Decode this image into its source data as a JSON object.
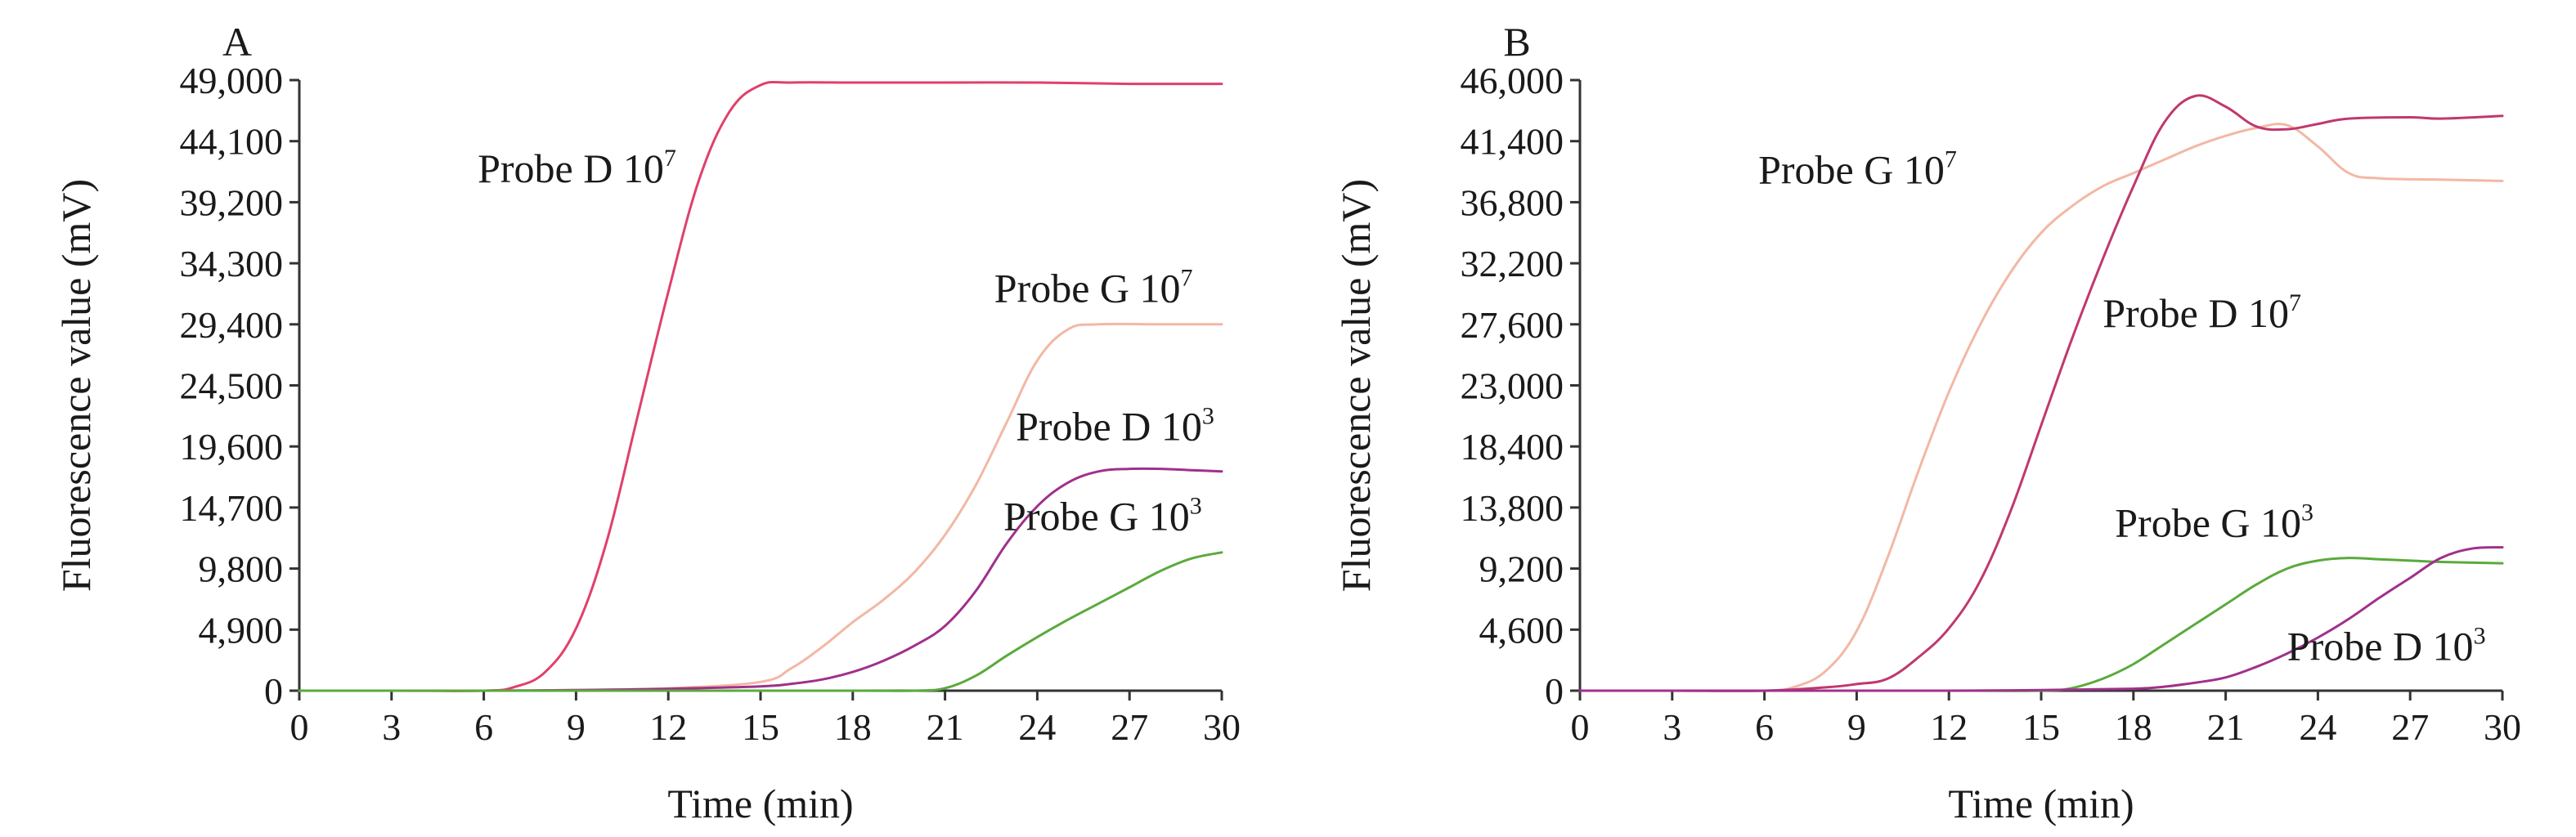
{
  "chart_data": [
    {
      "type": "line",
      "panel_label": "A",
      "xlabel": "Time (min)",
      "ylabel": "Fluorescence value (mV)",
      "xlim": [
        0,
        30
      ],
      "ylim": [
        0,
        49000
      ],
      "x_ticks": [
        0,
        3,
        6,
        9,
        12,
        15,
        18,
        21,
        24,
        27,
        30
      ],
      "x_tick_labels": [
        "0",
        "3",
        "6",
        "9",
        "12",
        "15",
        "18",
        "21",
        "24",
        "27",
        "30"
      ],
      "y_ticks": [
        0,
        4900,
        9800,
        14700,
        19600,
        24500,
        29400,
        34300,
        39200,
        44100,
        49000
      ],
      "y_tick_labels": [
        "0",
        "4,900",
        "9,800",
        "14,700",
        "19,600",
        "24,500",
        "29,400",
        "34,300",
        "39,200",
        "44,100",
        "49,000"
      ],
      "grid": false,
      "series": [
        {
          "name": "Probe D 10^7",
          "label_base": "Probe D 10",
          "label_exp": "7",
          "color": "#e0406a",
          "points": [
            [
              0,
              0
            ],
            [
              3,
              0
            ],
            [
              6,
              0
            ],
            [
              7,
              300
            ],
            [
              8,
              1500
            ],
            [
              9,
              5000
            ],
            [
              10,
              12000
            ],
            [
              11,
              22000
            ],
            [
              12,
              32000
            ],
            [
              13,
              41000
            ],
            [
              14,
              46500
            ],
            [
              15,
              48600
            ],
            [
              16,
              48800
            ],
            [
              18,
              48800
            ],
            [
              21,
              48800
            ],
            [
              24,
              48800
            ],
            [
              27,
              48700
            ],
            [
              30,
              48700
            ]
          ]
        },
        {
          "name": "Probe G 10^7",
          "label_base": "Probe G 10",
          "label_exp": "7",
          "color": "#f2b8a4",
          "points": [
            [
              0,
              0
            ],
            [
              3,
              0
            ],
            [
              6,
              0
            ],
            [
              9,
              50
            ],
            [
              12,
              200
            ],
            [
              15,
              700
            ],
            [
              16,
              1800
            ],
            [
              17,
              3500
            ],
            [
              18,
              5500
            ],
            [
              19,
              7300
            ],
            [
              20,
              9500
            ],
            [
              21,
              12500
            ],
            [
              22,
              16500
            ],
            [
              23,
              21500
            ],
            [
              24,
              26500
            ],
            [
              25,
              29000
            ],
            [
              26,
              29400
            ],
            [
              28,
              29400
            ],
            [
              30,
              29400
            ]
          ]
        },
        {
          "name": "Probe D 10^3",
          "label_base": "Probe D 10",
          "label_exp": "3",
          "color": "#a0308c",
          "points": [
            [
              0,
              0
            ],
            [
              3,
              0
            ],
            [
              6,
              0
            ],
            [
              9,
              50
            ],
            [
              12,
              150
            ],
            [
              15,
              350
            ],
            [
              16,
              550
            ],
            [
              17,
              900
            ],
            [
              18,
              1500
            ],
            [
              19,
              2400
            ],
            [
              20,
              3600
            ],
            [
              21,
              5200
            ],
            [
              22,
              8000
            ],
            [
              23,
              11800
            ],
            [
              24,
              14800
            ],
            [
              25,
              16700
            ],
            [
              26,
              17600
            ],
            [
              27,
              17800
            ],
            [
              28,
              17800
            ],
            [
              29,
              17700
            ],
            [
              30,
              17600
            ]
          ]
        },
        {
          "name": "Probe G 10^3",
          "label_base": "Probe G 10",
          "label_exp": "3",
          "color": "#5aaa3c",
          "points": [
            [
              0,
              0
            ],
            [
              6,
              0
            ],
            [
              12,
              0
            ],
            [
              18,
              0
            ],
            [
              20,
              0
            ],
            [
              21,
              200
            ],
            [
              22,
              1200
            ],
            [
              23,
              2800
            ],
            [
              24,
              4300
            ],
            [
              25,
              5700
            ],
            [
              26,
              7000
            ],
            [
              27,
              8300
            ],
            [
              28,
              9600
            ],
            [
              29,
              10600
            ],
            [
              30,
              11100
            ]
          ]
        }
      ],
      "annotations": [
        {
          "series": 0,
          "text": "Probe D 10",
          "sup": "7",
          "x": 5.8,
          "y": 40800
        },
        {
          "series": 1,
          "text": "Probe G 10",
          "sup": "7",
          "x": 22.6,
          "y": 31200
        },
        {
          "series": 2,
          "text": "Probe D 10",
          "sup": "3",
          "x": 23.3,
          "y": 20100
        },
        {
          "series": 3,
          "text": "Probe G 10",
          "sup": "3",
          "x": 22.9,
          "y": 12900
        }
      ]
    },
    {
      "type": "line",
      "panel_label": "B",
      "xlabel": "Time (min)",
      "ylabel": "Fluorescence value (mV)",
      "xlim": [
        0,
        30
      ],
      "ylim": [
        0,
        46000
      ],
      "x_ticks": [
        0,
        3,
        6,
        9,
        12,
        15,
        18,
        21,
        24,
        27,
        30
      ],
      "x_tick_labels": [
        "0",
        "3",
        "6",
        "9",
        "12",
        "15",
        "18",
        "21",
        "24",
        "27",
        "30"
      ],
      "y_ticks": [
        0,
        4600,
        9200,
        13800,
        18400,
        23000,
        27600,
        32200,
        36800,
        41400,
        46000
      ],
      "y_tick_labels": [
        "0",
        "4,600",
        "9,200",
        "13,800",
        "18,400",
        "23,000",
        "27,600",
        "32,200",
        "36,800",
        "41,400",
        "46,000"
      ],
      "grid": false,
      "series": [
        {
          "name": "Probe G 10^7",
          "label_base": "Probe G 10",
          "label_exp": "7",
          "color": "#f2b8a4",
          "points": [
            [
              0,
              0
            ],
            [
              3,
              0
            ],
            [
              6,
              0
            ],
            [
              7,
              300
            ],
            [
              8,
              1500
            ],
            [
              9,
              4500
            ],
            [
              10,
              10000
            ],
            [
              11,
              16500
            ],
            [
              12,
              22500
            ],
            [
              13,
              27500
            ],
            [
              14,
              31500
            ],
            [
              15,
              34500
            ],
            [
              16,
              36500
            ],
            [
              17,
              38000
            ],
            [
              18,
              39000
            ],
            [
              19,
              40000
            ],
            [
              20,
              41000
            ],
            [
              21,
              41800
            ],
            [
              22,
              42400
            ],
            [
              23,
              42600
            ],
            [
              24,
              41000
            ],
            [
              25,
              39000
            ],
            [
              26,
              38600
            ],
            [
              28,
              38500
            ],
            [
              30,
              38400
            ]
          ]
        },
        {
          "name": "Probe D 10^7",
          "label_base": "Probe D 10",
          "label_exp": "7",
          "color": "#c0386e",
          "points": [
            [
              0,
              0
            ],
            [
              3,
              0
            ],
            [
              6,
              0
            ],
            [
              8,
              250
            ],
            [
              9,
              500
            ],
            [
              10,
              900
            ],
            [
              11,
              2500
            ],
            [
              12,
              4700
            ],
            [
              13,
              8200
            ],
            [
              14,
              13500
            ],
            [
              15,
              20000
            ],
            [
              16,
              26500
            ],
            [
              17,
              32500
            ],
            [
              18,
              38000
            ],
            [
              19,
              42800
            ],
            [
              20,
              44800
            ],
            [
              21,
              44000
            ],
            [
              22,
              42500
            ],
            [
              23,
              42300
            ],
            [
              24,
              42700
            ],
            [
              25,
              43100
            ],
            [
              27,
              43200
            ],
            [
              28,
              43100
            ],
            [
              30,
              43300
            ]
          ]
        },
        {
          "name": "Probe G 10^3",
          "label_base": "Probe G 10",
          "label_exp": "3",
          "color": "#5aaa3c",
          "points": [
            [
              0,
              0
            ],
            [
              6,
              0
            ],
            [
              12,
              0
            ],
            [
              15,
              0
            ],
            [
              16,
              200
            ],
            [
              17,
              900
            ],
            [
              18,
              2000
            ],
            [
              19,
              3500
            ],
            [
              20,
              5000
            ],
            [
              21,
              6500
            ],
            [
              22,
              8000
            ],
            [
              23,
              9200
            ],
            [
              24,
              9800
            ],
            [
              25,
              10000
            ],
            [
              26,
              9900
            ],
            [
              27,
              9800
            ],
            [
              28,
              9700
            ],
            [
              30,
              9600
            ]
          ]
        },
        {
          "name": "Probe D 10^3",
          "label_base": "Probe D 10",
          "label_exp": "3",
          "color": "#a0308c",
          "points": [
            [
              0,
              0
            ],
            [
              6,
              0
            ],
            [
              12,
              0
            ],
            [
              15,
              50
            ],
            [
              18,
              150
            ],
            [
              19,
              300
            ],
            [
              20,
              600
            ],
            [
              21,
              1000
            ],
            [
              22,
              1800
            ],
            [
              23,
              2800
            ],
            [
              24,
              4000
            ],
            [
              25,
              5400
            ],
            [
              26,
              7000
            ],
            [
              27,
              8500
            ],
            [
              28,
              10000
            ],
            [
              29,
              10700
            ],
            [
              30,
              10800
            ]
          ]
        }
      ],
      "annotations": [
        {
          "series": 0,
          "text": "Probe G 10",
          "sup": "7",
          "x": 5.8,
          "y": 38200
        },
        {
          "series": 1,
          "text": "Probe D 10",
          "sup": "7",
          "x": 17.0,
          "y": 27400
        },
        {
          "series": 2,
          "text": "Probe G 10",
          "sup": "3",
          "x": 17.4,
          "y": 11600
        },
        {
          "series": 3,
          "text": "Probe D 10",
          "sup": "3",
          "x": 23.0,
          "y": 2300
        }
      ]
    }
  ]
}
